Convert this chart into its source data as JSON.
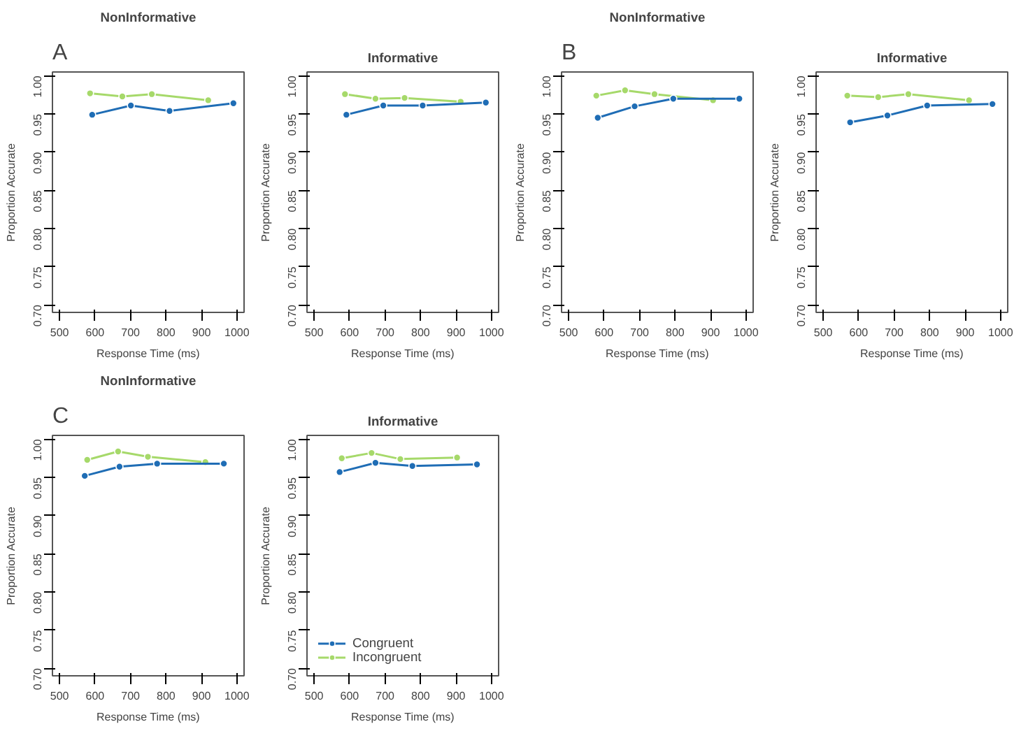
{
  "chart_data": [
    {
      "type": "line",
      "title": "NonInformative",
      "xlabel": "Response Time (ms)",
      "ylabel": "Proportion Accurate",
      "annotations": [
        "A"
      ],
      "xlim": [
        480,
        1020
      ],
      "xticks": [
        500,
        600,
        700,
        800,
        900,
        1000
      ],
      "ylim": [
        0.69,
        1.005
      ],
      "yticks": [
        {
          "value": 0.7,
          "label": "0.70"
        },
        {
          "value": 0.75,
          "label": "0.75"
        },
        {
          "value": 0.8,
          "label": "0.80"
        },
        {
          "value": 0.85,
          "label": "0.85"
        },
        {
          "value": 0.9,
          "label": "0.90"
        },
        {
          "value": 0.95,
          "label": "0.95"
        },
        {
          "value": 1.0,
          "label": "1.00"
        }
      ],
      "grid": false,
      "marker": "circle",
      "series": [
        {
          "color": "#a6d96a",
          "x": [
            586,
            677,
            760,
            919
          ],
          "values": [
            0.977,
            0.973,
            0.976,
            0.968
          ]
        },
        {
          "color": "#1f6db5",
          "x": [
            592,
            701,
            810,
            990
          ],
          "values": [
            0.949,
            0.961,
            0.954,
            0.964
          ]
        }
      ]
    },
    {
      "type": "line",
      "title": "Informative",
      "xlabel": "Response Time (ms)",
      "ylabel": "Proportion Accurate",
      "xlim": [
        480,
        1020
      ],
      "xticks": [
        500,
        600,
        700,
        800,
        900,
        1000
      ],
      "ylim": [
        0.69,
        1.005
      ],
      "yticks": [
        {
          "value": 0.7,
          "label": "0.70"
        },
        {
          "value": 0.75,
          "label": "0.75"
        },
        {
          "value": 0.8,
          "label": "0.80"
        },
        {
          "value": 0.85,
          "label": "0.85"
        },
        {
          "value": 0.9,
          "label": "0.90"
        },
        {
          "value": 0.95,
          "label": "0.95"
        },
        {
          "value": 1.0,
          "label": "1.00"
        }
      ],
      "grid": false,
      "marker": "circle",
      "series": [
        {
          "color": "#a6d96a",
          "x": [
            587,
            673,
            755,
            913
          ],
          "values": [
            0.976,
            0.97,
            0.971,
            0.966
          ]
        },
        {
          "color": "#1f6db5",
          "x": [
            591,
            695,
            806,
            984
          ],
          "values": [
            0.949,
            0.961,
            0.961,
            0.965
          ]
        }
      ]
    },
    {
      "type": "line",
      "title": "NonInformative",
      "xlabel": "Response Time (ms)",
      "ylabel": "Proportion Accurate",
      "annotations": [
        "B"
      ],
      "xlim": [
        480,
        1020
      ],
      "xticks": [
        500,
        600,
        700,
        800,
        900,
        1000
      ],
      "ylim": [
        0.69,
        1.005
      ],
      "yticks": [
        {
          "value": 0.7,
          "label": "0.70"
        },
        {
          "value": 0.75,
          "label": "0.75"
        },
        {
          "value": 0.8,
          "label": "0.80"
        },
        {
          "value": 0.85,
          "label": "0.85"
        },
        {
          "value": 0.9,
          "label": "0.90"
        },
        {
          "value": 0.95,
          "label": "0.95"
        },
        {
          "value": 1.0,
          "label": "1.00"
        }
      ],
      "grid": false,
      "marker": "circle",
      "series": [
        {
          "color": "#a6d96a",
          "x": [
            578,
            659,
            742,
            907
          ],
          "values": [
            0.974,
            0.981,
            0.976,
            0.968
          ]
        },
        {
          "color": "#1f6db5",
          "x": [
            582,
            686,
            795,
            981
          ],
          "values": [
            0.945,
            0.96,
            0.97,
            0.97
          ]
        }
      ]
    },
    {
      "type": "line",
      "title": "Informative",
      "xlabel": "Response Time (ms)",
      "ylabel": "Proportion Accurate",
      "xlim": [
        480,
        1020
      ],
      "xticks": [
        500,
        600,
        700,
        800,
        900,
        1000
      ],
      "ylim": [
        0.69,
        1.005
      ],
      "yticks": [
        {
          "value": 0.7,
          "label": "0.70"
        },
        {
          "value": 0.75,
          "label": "0.75"
        },
        {
          "value": 0.8,
          "label": "0.80"
        },
        {
          "value": 0.85,
          "label": "0.85"
        },
        {
          "value": 0.9,
          "label": "0.90"
        },
        {
          "value": 0.95,
          "label": "0.95"
        },
        {
          "value": 1.0,
          "label": "1.00"
        }
      ],
      "grid": false,
      "marker": "circle",
      "series": [
        {
          "color": "#a6d96a",
          "x": [
            568,
            655,
            740,
            911
          ],
          "values": [
            0.974,
            0.972,
            0.976,
            0.968
          ]
        },
        {
          "color": "#1f6db5",
          "x": [
            576,
            681,
            793,
            977
          ],
          "values": [
            0.939,
            0.948,
            0.961,
            0.963
          ]
        }
      ]
    },
    {
      "type": "line",
      "title": "NonInformative",
      "xlabel": "Response Time (ms)",
      "ylabel": "Proportion Accurate",
      "annotations": [
        "C"
      ],
      "xlim": [
        480,
        1020
      ],
      "xticks": [
        500,
        600,
        700,
        800,
        900,
        1000
      ],
      "ylim": [
        0.69,
        1.005
      ],
      "yticks": [
        {
          "value": 0.7,
          "label": "0.70"
        },
        {
          "value": 0.75,
          "label": "0.75"
        },
        {
          "value": 0.8,
          "label": "0.80"
        },
        {
          "value": 0.85,
          "label": "0.85"
        },
        {
          "value": 0.9,
          "label": "0.90"
        },
        {
          "value": 0.95,
          "label": "0.95"
        },
        {
          "value": 1.0,
          "label": "1.00"
        }
      ],
      "grid": false,
      "marker": "circle",
      "series": [
        {
          "color": "#a6d96a",
          "x": [
            578,
            665,
            749,
            911
          ],
          "values": [
            0.973,
            0.984,
            0.977,
            0.97
          ]
        },
        {
          "color": "#1f6db5",
          "x": [
            571,
            669,
            775,
            963
          ],
          "values": [
            0.952,
            0.964,
            0.968,
            0.968
          ]
        }
      ]
    },
    {
      "type": "line",
      "title": "Informative",
      "xlabel": "Response Time (ms)",
      "ylabel": "Proportion Accurate",
      "xlim": [
        480,
        1020
      ],
      "xticks": [
        500,
        600,
        700,
        800,
        900,
        1000
      ],
      "ylim": [
        0.69,
        1.005
      ],
      "yticks": [
        {
          "value": 0.7,
          "label": "0.70"
        },
        {
          "value": 0.75,
          "label": "0.75"
        },
        {
          "value": 0.8,
          "label": "0.80"
        },
        {
          "value": 0.85,
          "label": "0.85"
        },
        {
          "value": 0.9,
          "label": "0.90"
        },
        {
          "value": 0.95,
          "label": "0.95"
        },
        {
          "value": 1.0,
          "label": "1.00"
        }
      ],
      "grid": false,
      "marker": "circle",
      "legend": "bottom left",
      "series": [
        {
          "name": "Congruent",
          "color": "#1f6db5",
          "x": [
            572,
            673,
            777,
            959
          ],
          "values": [
            0.957,
            0.969,
            0.965,
            0.967
          ]
        },
        {
          "name": "Incongruent",
          "color": "#a6d96a",
          "x": [
            578,
            662,
            743,
            903
          ],
          "values": [
            0.975,
            0.982,
            0.974,
            0.976
          ]
        }
      ]
    }
  ]
}
